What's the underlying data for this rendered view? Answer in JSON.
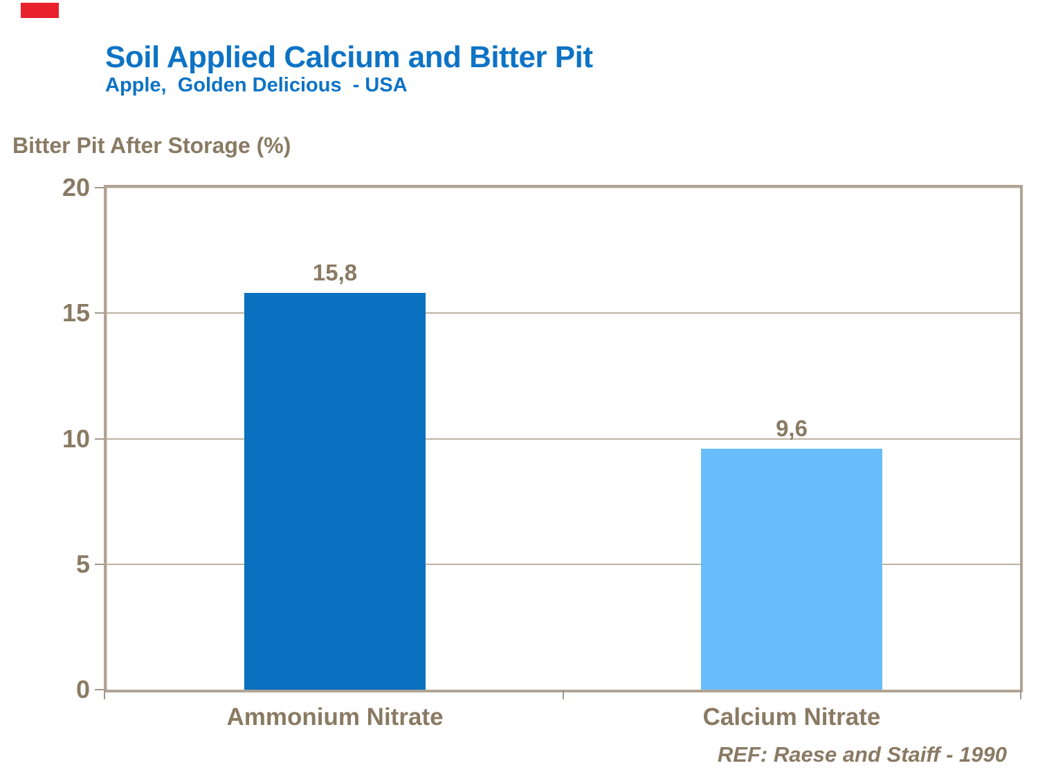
{
  "header": {
    "title": "Soil Applied Calcium and Bitter Pit",
    "subtitle": "Apple,  Golden Delicious  - USA"
  },
  "chart_data": {
    "type": "bar",
    "title": "Soil Applied Calcium and Bitter Pit",
    "subtitle": "Apple, Golden Delicious - USA",
    "ylabel": "Bitter Pit After Storage (%)",
    "xlabel": "",
    "categories": [
      "Ammonium Nitrate",
      "Calcium Nitrate"
    ],
    "values": [
      15.8,
      9.6
    ],
    "value_labels": [
      "15,8",
      "9,6"
    ],
    "yticks": [
      0,
      5,
      10,
      15,
      20
    ],
    "ylim": [
      0,
      20
    ],
    "grid": true,
    "legend": false,
    "bar_colors": [
      "#0a70c0",
      "#6abdfb"
    ],
    "reference": "REF: Raese and Staiff - 1990"
  },
  "colors": {
    "title_blue": "#0d73c5",
    "label_brown": "#8a7a63",
    "frame_tan": "#b1a493",
    "gridline_tan": "#bdb2a2",
    "tick_gray": "#a0988c",
    "bar_dark_blue": "#0a70c0",
    "bar_light_blue": "#6abdfb",
    "corner_mark_red": "#e8212d"
  }
}
